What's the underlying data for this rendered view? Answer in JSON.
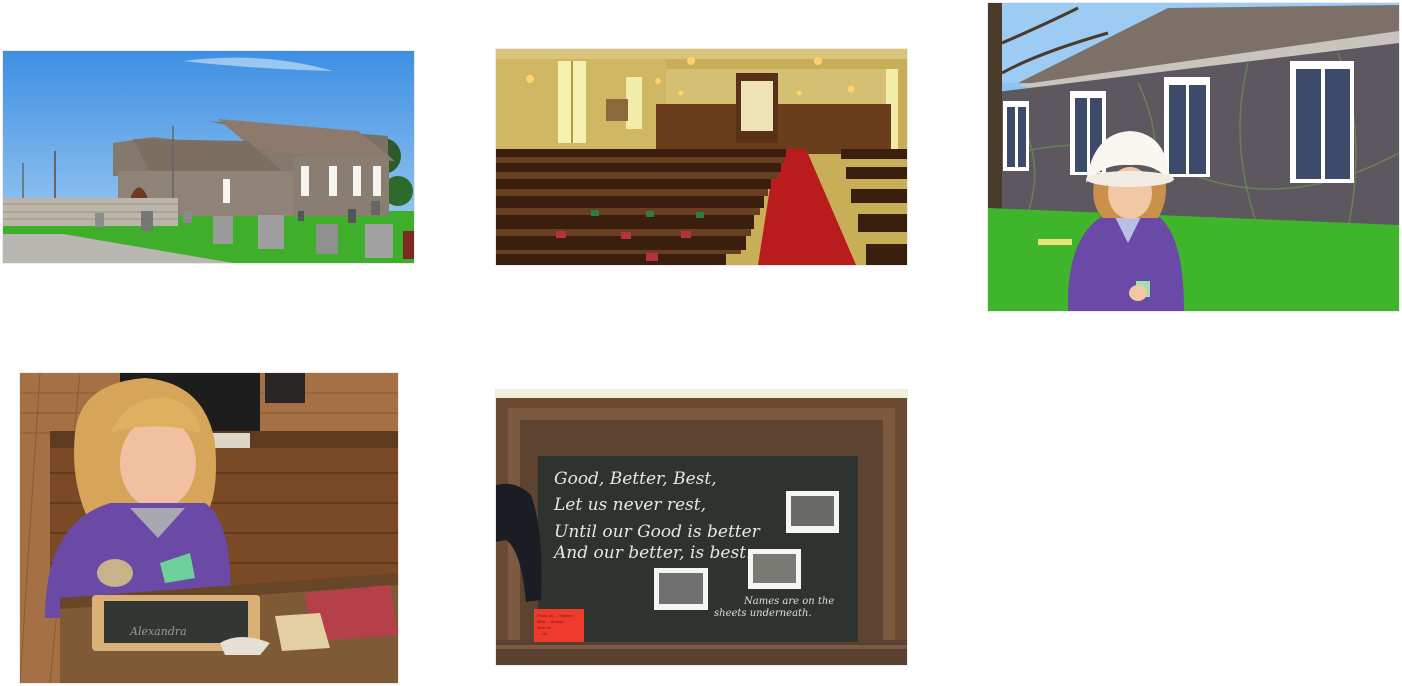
{
  "gallery": {
    "photos": [
      {
        "subject": "stone-church-with-cemetery"
      },
      {
        "subject": "church-interior-pews"
      },
      {
        "subject": "girl-in-sun-hat-by-church"
      },
      {
        "subject": "girl-at-school-desk"
      },
      {
        "subject": "chalkboard-with-poem"
      }
    ]
  },
  "chalkboard": {
    "poem": [
      "Good, Better, Best,",
      "Let us never rest,",
      "Until our Good is better",
      "And our better, is best."
    ],
    "names_note": [
      "Names are on the",
      "sheets underneath."
    ],
    "red_note": [
      "Photo (c) ... Teacher",
      "Miss ... School",
      "Year 19.. ",
      "... 19.."
    ]
  },
  "slate": {
    "text": "Alexandra"
  },
  "colors": {
    "sky": "#3f8fe0",
    "grass": "#3fae2a",
    "stone": "#8b7f74",
    "chalkboard": "#2f3330",
    "frame": "#6a4a33",
    "carpet": "#b81c1c",
    "fleece": "#6a4aa6"
  }
}
